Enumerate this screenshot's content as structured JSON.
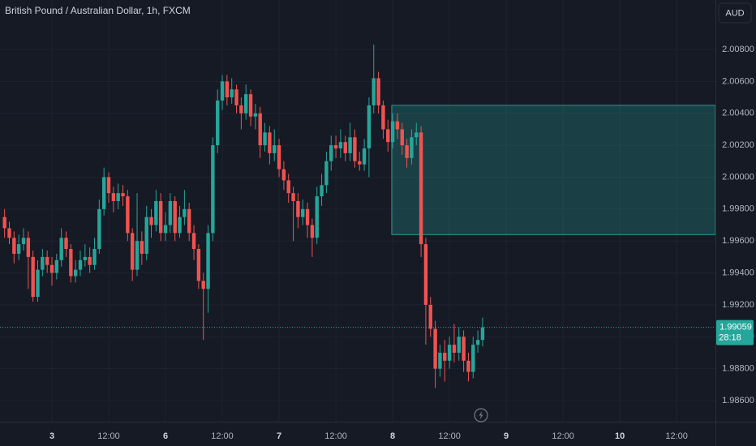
{
  "chart_data": {
    "type": "candlestick",
    "title": "British Pound / Australian Dollar, 1h, FXCM",
    "currency": "AUD",
    "up_color": "#26a69a",
    "down_color": "#ef5350",
    "grid": true,
    "xlim": [
      -0.97,
      150.2
    ],
    "ylim": [
      1.98468,
      2.0111
    ],
    "xticks": [
      {
        "value": 10,
        "label": "3"
      },
      {
        "value": 22,
        "label": "12:00"
      },
      {
        "value": 34,
        "label": "6"
      },
      {
        "value": 46,
        "label": "12:00"
      },
      {
        "value": 58,
        "label": "7"
      },
      {
        "value": 70,
        "label": "12:00"
      },
      {
        "value": 82,
        "label": "8"
      },
      {
        "value": 94,
        "label": "12:00"
      },
      {
        "value": 106,
        "label": "9"
      },
      {
        "value": 118,
        "label": "12:00"
      },
      {
        "value": 130,
        "label": "10"
      },
      {
        "value": 142,
        "label": "12:00"
      }
    ],
    "yticks": [
      {
        "value": 2.008,
        "label": "2.00800"
      },
      {
        "value": 2.006,
        "label": "2.00600"
      },
      {
        "value": 2.004,
        "label": "2.00400"
      },
      {
        "value": 2.002,
        "label": "2.00200"
      },
      {
        "value": 2.0,
        "label": "2.00000"
      },
      {
        "value": 1.998,
        "label": "1.99800"
      },
      {
        "value": 1.996,
        "label": "1.99600"
      },
      {
        "value": 1.994,
        "label": "1.99400"
      },
      {
        "value": 1.992,
        "label": "1.99200"
      },
      {
        "value": 1.99,
        "label": "1.99000"
      },
      {
        "value": 1.988,
        "label": "1.98800"
      },
      {
        "value": 1.986,
        "label": "1.98600"
      }
    ],
    "open": [
      1.9975,
      1.9968,
      1.9962,
      1.9952,
      1.9958,
      1.9962,
      1.995,
      1.9925,
      1.9942,
      1.995,
      1.9945,
      1.994,
      1.9948,
      1.9962,
      1.9955,
      1.9938,
      1.9942,
      1.9948,
      1.995,
      1.9945,
      1.9955,
      1.998,
      2.0,
      1.999,
      1.9985,
      1.999,
      1.9988,
      1.9965,
      1.9942,
      1.996,
      1.9952,
      1.9975,
      1.997,
      1.9985,
      1.9965,
      1.997,
      1.9985,
      1.9965,
      1.9975,
      1.998,
      1.9965,
      1.9955,
      1.9935,
      1.993,
      1.9965,
      2.002,
      2.0048,
      2.006,
      2.005,
      2.0055,
      2.0045,
      2.004,
      2.0052,
      2.0038,
      2.004,
      2.002,
      2.0028,
      2.0015,
      2.002,
      2.0005,
      1.9998,
      1.999,
      1.9985,
      1.9975,
      1.998,
      1.997,
      1.9962,
      1.9988,
      1.9995,
      2.001,
      2.002,
      2.0018,
      2.0022,
      2.0015,
      2.0025,
      2.001,
      2.0008,
      2.0018,
      2.0045,
      2.0062,
      2.0045,
      2.003,
      2.0022,
      2.0035,
      2.003,
      2.002,
      2.0012,
      2.0025,
      2.0028,
      1.9958,
      1.992,
      1.9905,
      1.988,
      1.989,
      1.9885,
      1.9895,
      1.989,
      1.99,
      1.9885,
      1.9878,
      1.9895,
      1.9898
    ],
    "high": [
      1.998,
      1.9972,
      1.9966,
      1.9964,
      1.9968,
      1.9966,
      1.9954,
      1.9948,
      1.9955,
      1.9954,
      1.995,
      1.9952,
      1.9968,
      1.9966,
      1.9958,
      1.9948,
      1.9954,
      1.9958,
      1.9956,
      1.9962,
      1.9986,
      2.0006,
      2.0003,
      1.9994,
      1.9996,
      1.9995,
      1.9992,
      1.9968,
      1.999,
      1.9966,
      1.9982,
      1.998,
      1.9992,
      1.999,
      1.9978,
      1.999,
      1.9988,
      1.9982,
      1.9992,
      1.9984,
      1.997,
      1.9958,
      1.994,
      1.997,
      2.0025,
      2.0055,
      2.0064,
      2.0064,
      2.0062,
      2.0058,
      2.005,
      2.0058,
      2.0055,
      2.0046,
      2.0044,
      2.0034,
      2.0032,
      2.003,
      2.0024,
      2.001,
      2.0002,
      1.9994,
      1.999,
      1.9986,
      1.9984,
      1.9974,
      1.9994,
      2.0002,
      2.0016,
      2.0026,
      2.0026,
      2.003,
      2.0026,
      2.0034,
      2.003,
      2.0016,
      2.0024,
      2.005,
      2.0083,
      2.0066,
      2.0048,
      2.0036,
      2.004,
      2.004,
      2.0034,
      2.0024,
      2.003,
      2.0034,
      2.0032,
      1.9962,
      1.9925,
      1.991,
      1.9895,
      1.9898,
      1.99,
      1.9908,
      1.9906,
      1.9904,
      1.989,
      1.99,
      1.9904,
      1.9912
    ],
    "low": [
      1.9962,
      1.9958,
      1.9946,
      1.9948,
      1.9954,
      1.993,
      1.9922,
      1.9922,
      1.9938,
      1.994,
      1.9932,
      1.9936,
      1.9944,
      1.995,
      1.9934,
      1.9934,
      1.9938,
      1.9944,
      1.994,
      1.9942,
      1.9952,
      1.9976,
      1.9984,
      1.9978,
      1.998,
      1.9982,
      1.996,
      1.9935,
      1.9938,
      1.9945,
      1.9948,
      1.9962,
      1.9966,
      1.996,
      1.996,
      1.9965,
      1.996,
      1.9962,
      1.997,
      1.996,
      1.9948,
      1.993,
      1.9898,
      1.9915,
      1.996,
      2.0015,
      2.0042,
      2.0045,
      2.0046,
      2.004,
      2.003,
      2.0036,
      2.0032,
      2.003,
      2.0012,
      2.0016,
      2.0008,
      2.001,
      2.0,
      1.9992,
      1.9984,
      1.996,
      1.9968,
      1.997,
      1.9962,
      1.995,
      1.9958,
      1.9982,
      1.999,
      2.0004,
      2.0012,
      2.0012,
      2.001,
      2.001,
      2.0006,
      2.0004,
      2.0004,
      2.0,
      2.004,
      2.004,
      2.0024,
      2.0016,
      2.0018,
      2.0024,
      2.0014,
      2.0006,
      2.0008,
      2.002,
      1.995,
      1.9895,
      1.99,
      1.9868,
      1.9875,
      1.9872,
      1.988,
      1.9884,
      1.9885,
      1.9878,
      1.9872,
      1.9874,
      1.989,
      1.9894
    ],
    "close": [
      1.9968,
      1.9962,
      1.9952,
      1.9958,
      1.9962,
      1.995,
      1.9925,
      1.9942,
      1.995,
      1.9945,
      1.994,
      1.9948,
      1.9962,
      1.9955,
      1.9938,
      1.9942,
      1.9948,
      1.995,
      1.9945,
      1.9955,
      1.998,
      2.0,
      1.999,
      1.9985,
      1.999,
      1.9988,
      1.9965,
      1.9942,
      1.996,
      1.9952,
      1.9975,
      1.997,
      1.9985,
      1.9965,
      1.997,
      1.9985,
      1.9965,
      1.9975,
      1.998,
      1.9965,
      1.9955,
      1.9935,
      1.993,
      1.9965,
      2.002,
      2.0048,
      2.006,
      2.005,
      2.0055,
      2.0045,
      2.004,
      2.0052,
      2.0038,
      2.004,
      2.002,
      2.0028,
      2.0015,
      2.002,
      2.0005,
      1.9998,
      1.999,
      1.9985,
      1.9975,
      1.998,
      1.997,
      1.9962,
      1.9988,
      1.9995,
      2.001,
      2.002,
      2.0018,
      2.0022,
      2.0015,
      2.0025,
      2.001,
      2.0008,
      2.0018,
      2.0045,
      2.0062,
      2.0045,
      2.003,
      2.0022,
      2.0035,
      2.003,
      2.002,
      2.0012,
      2.0025,
      2.0028,
      1.9958,
      1.992,
      1.9905,
      1.988,
      1.989,
      1.9885,
      1.9895,
      1.989,
      1.99,
      1.9885,
      1.9878,
      1.9895,
      1.9898,
      1.99059
    ],
    "zone": {
      "top": 2.0045,
      "bottom": 1.9964,
      "x_start": 81.8
    },
    "last_price": 1.99059,
    "countdown": "28:18"
  }
}
